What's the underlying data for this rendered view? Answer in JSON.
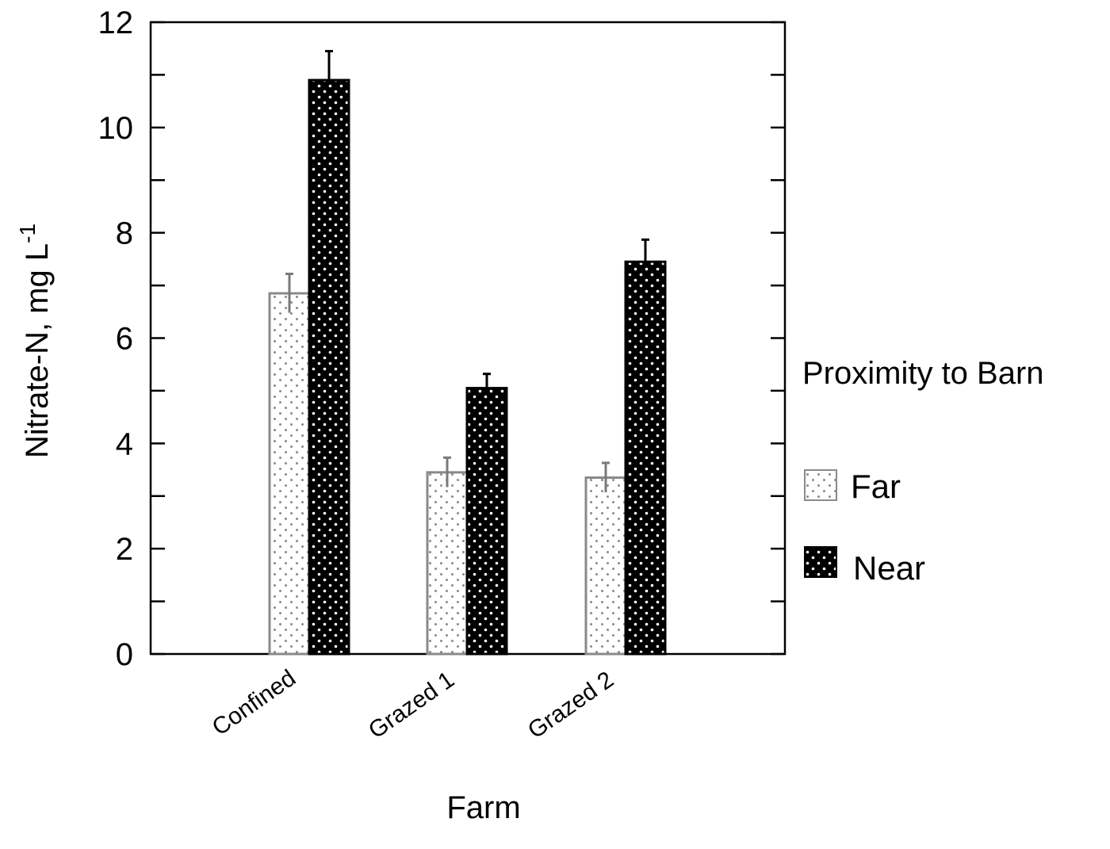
{
  "chart_data": {
    "type": "bar",
    "title": "",
    "xlabel": "Farm",
    "ylabel": "Nitrate-N, mg L",
    "ylabel_superscript": "-1",
    "ylim": [
      0,
      12
    ],
    "yticks": [
      0,
      2,
      4,
      6,
      8,
      10,
      12
    ],
    "categories": [
      "Confined",
      "Grazed 1",
      "Grazed 2"
    ],
    "series": [
      {
        "name": "Far",
        "values": [
          6.85,
          3.45,
          3.35
        ],
        "errors": [
          0.37,
          0.28,
          0.28
        ],
        "fill": "#ffffff",
        "dot": "#888888",
        "stroke": "#8a8a8a"
      },
      {
        "name": "Near",
        "values": [
          10.9,
          5.05,
          7.45
        ],
        "errors": [
          0.55,
          0.27,
          0.42
        ],
        "fill": "#000000",
        "dot": "#ffffff",
        "stroke": "#000000"
      }
    ],
    "legend": {
      "title": "Proximity to Barn",
      "position": "right",
      "entries": [
        "Far",
        "Near"
      ]
    },
    "grid": false
  }
}
